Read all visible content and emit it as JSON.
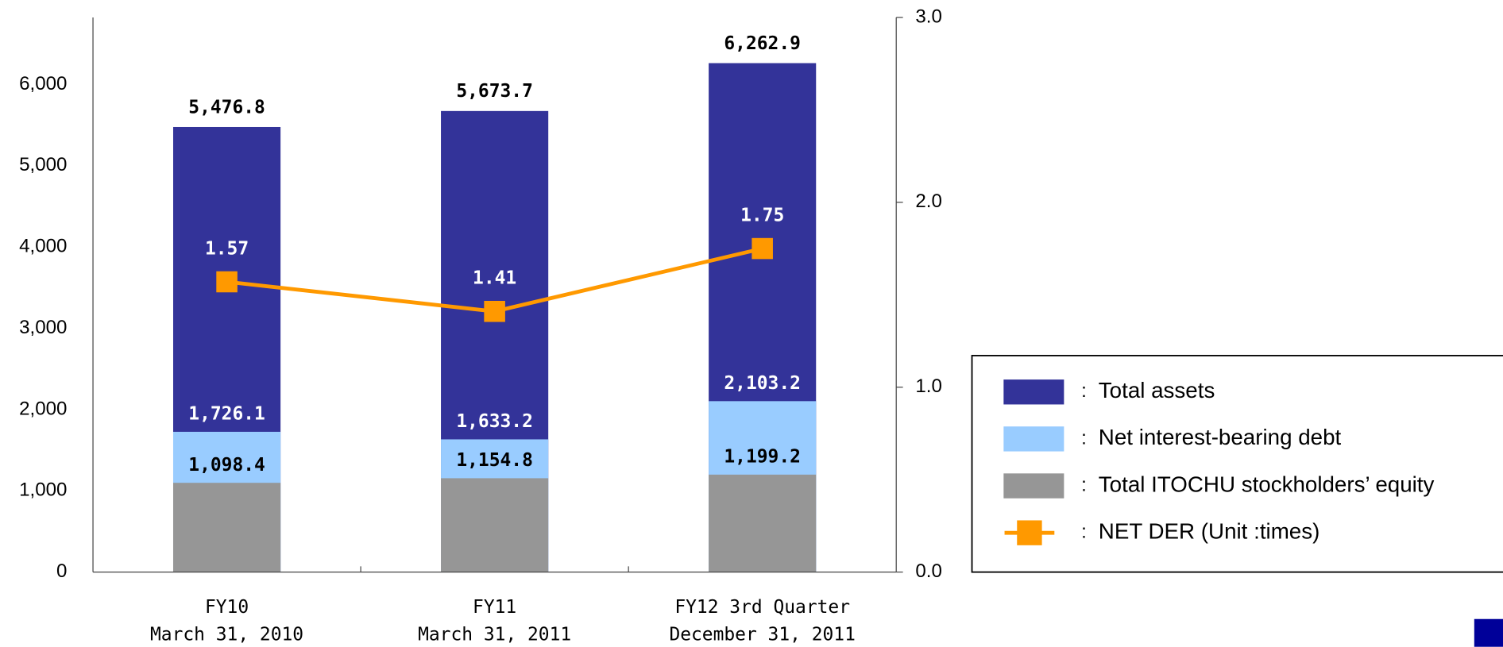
{
  "chart_data": {
    "type": "bar-line",
    "categories": [
      [
        "FY10",
        "March 31, 2010"
      ],
      [
        "FY11",
        "March 31, 2011"
      ],
      [
        "FY12 3rd Quarter",
        "December 31, 2011"
      ]
    ],
    "series": [
      {
        "name": "Total assets",
        "color": "#333399",
        "values": [
          5476.8,
          5673.7,
          6262.9
        ],
        "value_labels": [
          "5,476.8",
          "5,673.7",
          "6,262.9"
        ]
      },
      {
        "name": "Net interest-bearing debt",
        "color": "#99ccff",
        "values": [
          1726.1,
          1633.2,
          2103.2
        ],
        "value_labels": [
          "1,726.1",
          "1,633.2",
          "2,103.2"
        ]
      },
      {
        "name": "Total ITOCHU stockholders’ equity",
        "color": "#969696",
        "values": [
          1098.4,
          1154.8,
          1199.2
        ],
        "value_labels": [
          "1,098.4",
          "1,154.8",
          "1,199.2"
        ]
      },
      {
        "name": "NET DER (Unit :times)",
        "color": "#ff9900",
        "axis": "y2",
        "values": [
          1.57,
          1.41,
          1.75
        ]
      }
    ],
    "ylim": [
      0,
      6825
    ],
    "yticks": [
      0,
      {
        "value": 1000,
        "label": "1,000"
      },
      {
        "value": 2000,
        "label": "2,000"
      },
      {
        "value": 3000,
        "label": "3,000"
      },
      {
        "value": 4000,
        "label": "4,000"
      },
      {
        "value": 5000,
        "label": "5,000"
      },
      {
        "value": 6000,
        "label": "6,000"
      }
    ],
    "y2lim": [
      0,
      3
    ],
    "y2ticks": [
      {
        "value": 0,
        "label": "0.0"
      },
      {
        "value": 1,
        "label": "1.0"
      },
      {
        "value": 2,
        "label": "2.0"
      },
      {
        "value": 3,
        "label": "3.0"
      }
    ],
    "legend": "right"
  }
}
